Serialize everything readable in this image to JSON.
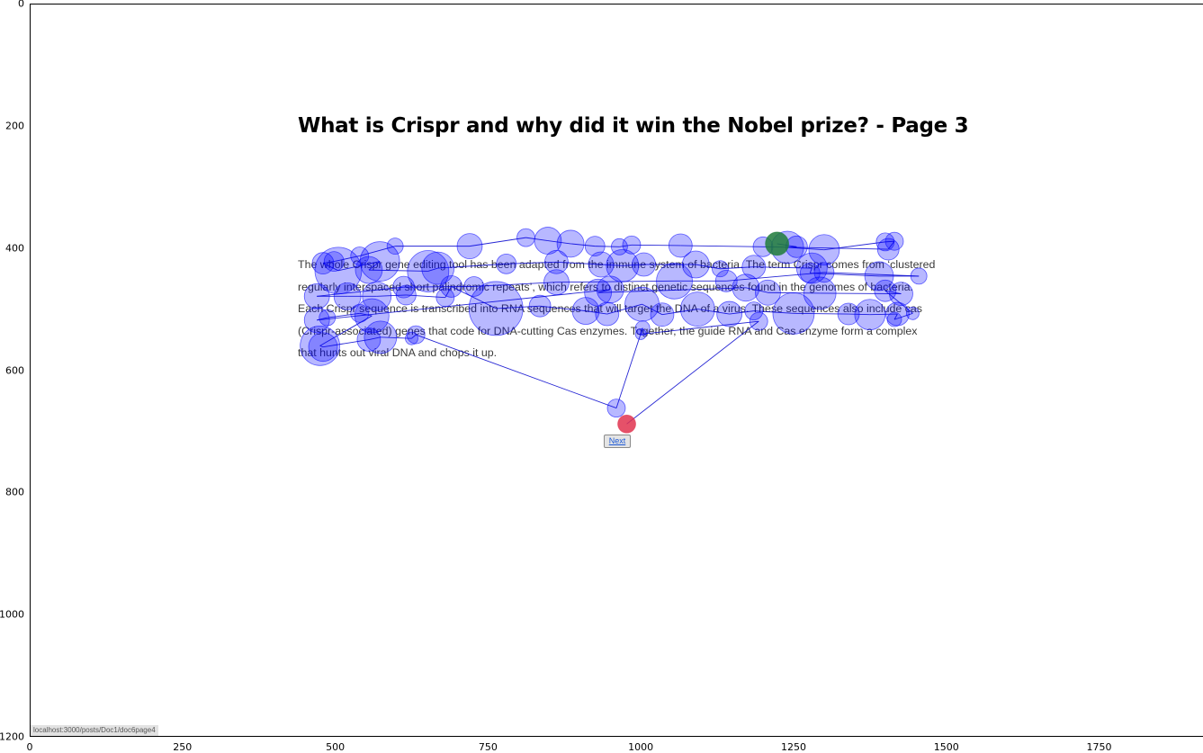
{
  "page": {
    "title": "What is Crispr and why did it win the Nobel prize? - Page 3",
    "body_text": "The whole Crispr gene editing tool has been adapted from the immune system of bacteria. The term Crispr comes from ‘clustered regularly interspaced short palindromic repeats’, which refers to distinct genetic sequences found in the genomes of bacteria. Each Crispr sequence is transcribed into RNA sequences that will target the DNA of a virus. These sequences also include cas (Crispr-associated) genes that code for DNA-cutting Cas enzymes. Together, the guide RNA and Cas enzyme form a complex that hunts out viral DNA and chops it up.",
    "next_label": "Next",
    "status_url": "localhost:3000/posts/Doc1/doc6page4"
  },
  "colors": {
    "fixation_fill": "#0000ff",
    "scanpath_line": "#0000cc",
    "start_marker": "#1e7b3a",
    "end_marker": "#e0334f"
  },
  "chart_data": {
    "type": "scatter",
    "title": "",
    "xlabel": "",
    "ylabel": "",
    "xlim": [
      0,
      1920
    ],
    "ylim": [
      1200,
      0
    ],
    "y_inverted": true,
    "grid": false,
    "xticks": [
      0,
      250,
      500,
      750,
      1000,
      1250,
      1500,
      1750
    ],
    "yticks": [
      0,
      200,
      400,
      600,
      800,
      1000,
      1200
    ],
    "series": [
      {
        "connected": true,
        "points": [
          {
            "x": 1223,
            "y": 393,
            "r": 13
          },
          {
            "x": 1255,
            "y": 398,
            "r": 12
          },
          {
            "x": 1240,
            "y": 399,
            "r": 18
          },
          {
            "x": 1300,
            "y": 403,
            "r": 17
          },
          {
            "x": 1400,
            "y": 390,
            "r": 10
          },
          {
            "x": 1415,
            "y": 389,
            "r": 10
          },
          {
            "x": 1405,
            "y": 402,
            "r": 12
          },
          {
            "x": 1200,
            "y": 398,
            "r": 11
          },
          {
            "x": 1065,
            "y": 396,
            "r": 13
          },
          {
            "x": 985,
            "y": 395,
            "r": 10
          },
          {
            "x": 965,
            "y": 398,
            "r": 9
          },
          {
            "x": 925,
            "y": 397,
            "r": 11
          },
          {
            "x": 885,
            "y": 393,
            "r": 15
          },
          {
            "x": 848,
            "y": 388,
            "r": 15
          },
          {
            "x": 812,
            "y": 383,
            "r": 10
          },
          {
            "x": 720,
            "y": 397,
            "r": 14
          },
          {
            "x": 598,
            "y": 397,
            "r": 9
          },
          {
            "x": 540,
            "y": 413,
            "r": 10
          },
          {
            "x": 498,
            "y": 422,
            "r": 11
          },
          {
            "x": 480,
            "y": 425,
            "r": 12
          },
          {
            "x": 505,
            "y": 437,
            "r": 26
          },
          {
            "x": 573,
            "y": 422,
            "r": 22
          },
          {
            "x": 555,
            "y": 436,
            "r": 15
          },
          {
            "x": 652,
            "y": 438,
            "r": 23
          },
          {
            "x": 668,
            "y": 433,
            "r": 18
          },
          {
            "x": 780,
            "y": 426,
            "r": 11
          },
          {
            "x": 862,
            "y": 423,
            "r": 13
          },
          {
            "x": 935,
            "y": 427,
            "r": 14
          },
          {
            "x": 970,
            "y": 429,
            "r": 18
          },
          {
            "x": 1005,
            "y": 427,
            "r": 13
          },
          {
            "x": 1090,
            "y": 427,
            "r": 15
          },
          {
            "x": 1130,
            "y": 434,
            "r": 9
          },
          {
            "x": 1185,
            "y": 431,
            "r": 13
          },
          {
            "x": 1280,
            "y": 433,
            "r": 17
          },
          {
            "x": 1277,
            "y": 441,
            "r": 11
          },
          {
            "x": 1390,
            "y": 446,
            "r": 16
          },
          {
            "x": 1455,
            "y": 446,
            "r": 9
          },
          {
            "x": 1300,
            "y": 440,
            "r": 11
          },
          {
            "x": 1140,
            "y": 454,
            "r": 12
          },
          {
            "x": 1055,
            "y": 454,
            "r": 20
          },
          {
            "x": 862,
            "y": 456,
            "r": 14
          },
          {
            "x": 727,
            "y": 463,
            "r": 11
          },
          {
            "x": 612,
            "y": 464,
            "r": 12
          },
          {
            "x": 470,
            "y": 479,
            "r": 14
          },
          {
            "x": 520,
            "y": 479,
            "r": 15
          },
          {
            "x": 568,
            "y": 479,
            "r": 16
          },
          {
            "x": 616,
            "y": 477,
            "r": 11
          },
          {
            "x": 680,
            "y": 481,
            "r": 10
          },
          {
            "x": 690,
            "y": 463,
            "r": 12
          },
          {
            "x": 763,
            "y": 499,
            "r": 30
          },
          {
            "x": 835,
            "y": 495,
            "r": 12
          },
          {
            "x": 910,
            "y": 503,
            "r": 15
          },
          {
            "x": 945,
            "y": 508,
            "r": 13
          },
          {
            "x": 1002,
            "y": 492,
            "r": 19
          },
          {
            "x": 1035,
            "y": 509,
            "r": 13
          },
          {
            "x": 1093,
            "y": 500,
            "r": 19
          },
          {
            "x": 1145,
            "y": 508,
            "r": 14
          },
          {
            "x": 1185,
            "y": 503,
            "r": 10
          },
          {
            "x": 1250,
            "y": 507,
            "r": 23
          },
          {
            "x": 1340,
            "y": 508,
            "r": 12
          },
          {
            "x": 1375,
            "y": 509,
            "r": 17
          },
          {
            "x": 1420,
            "y": 508,
            "r": 13
          },
          {
            "x": 1415,
            "y": 517,
            "r": 8
          },
          {
            "x": 1445,
            "y": 507,
            "r": 7
          },
          {
            "x": 1400,
            "y": 470,
            "r": 12
          },
          {
            "x": 1426,
            "y": 475,
            "r": 13
          },
          {
            "x": 1293,
            "y": 474,
            "r": 18
          },
          {
            "x": 1208,
            "y": 473,
            "r": 14
          },
          {
            "x": 1172,
            "y": 465,
            "r": 15
          },
          {
            "x": 930,
            "y": 473,
            "r": 15
          },
          {
            "x": 950,
            "y": 468,
            "r": 15
          },
          {
            "x": 470,
            "y": 518,
            "r": 14
          },
          {
            "x": 487,
            "y": 514,
            "r": 9
          },
          {
            "x": 540,
            "y": 507,
            "r": 10
          },
          {
            "x": 560,
            "y": 511,
            "r": 19
          },
          {
            "x": 475,
            "y": 560,
            "r": 22
          },
          {
            "x": 480,
            "y": 562,
            "r": 16
          },
          {
            "x": 555,
            "y": 550,
            "r": 13
          },
          {
            "x": 574,
            "y": 546,
            "r": 18
          },
          {
            "x": 625,
            "y": 548,
            "r": 7
          },
          {
            "x": 632,
            "y": 542,
            "r": 10
          },
          {
            "x": 960,
            "y": 662,
            "r": 10
          },
          {
            "x": 1003,
            "y": 531,
            "r": 8
          },
          {
            "x": 1000,
            "y": 541,
            "r": 6
          },
          {
            "x": 1193,
            "y": 520,
            "r": 10
          },
          {
            "x": 977,
            "y": 688,
            "r": 10
          }
        ]
      }
    ],
    "start_index": 0,
    "end_index": 85
  }
}
